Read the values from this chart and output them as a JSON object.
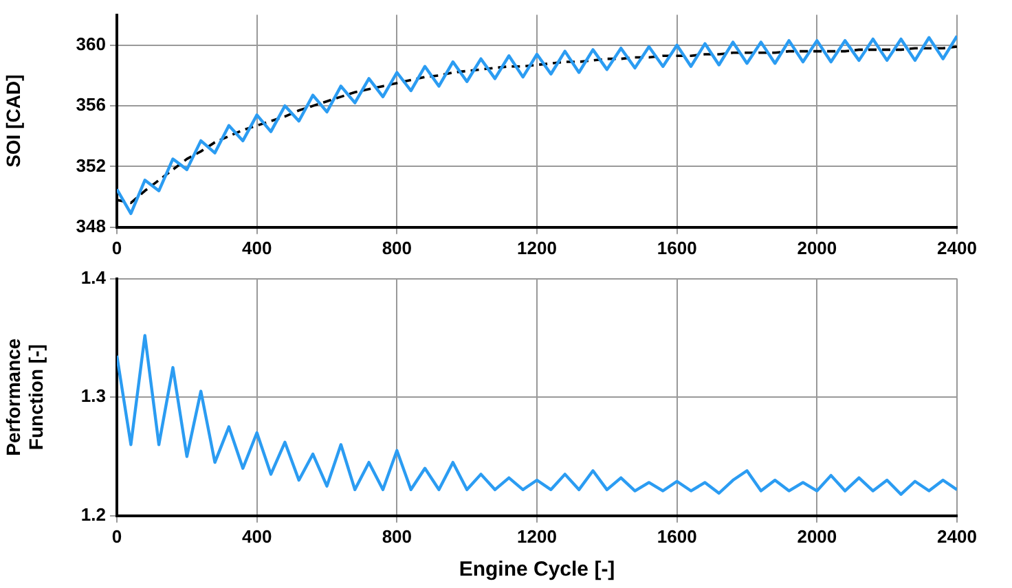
{
  "chart_data": [
    {
      "type": "line",
      "ylabel": "SOI [CAD]",
      "xlim": [
        0,
        2400
      ],
      "xticks": [
        0,
        400,
        800,
        1200,
        1600,
        2000,
        2400
      ],
      "ylim": [
        348,
        362
      ],
      "yticks": [
        348,
        352,
        356,
        360
      ],
      "grid": true,
      "legend": false,
      "marker": "none",
      "x": [
        0,
        40,
        80,
        120,
        160,
        200,
        240,
        280,
        320,
        360,
        400,
        440,
        480,
        520,
        560,
        600,
        640,
        680,
        720,
        760,
        800,
        840,
        880,
        920,
        960,
        1000,
        1040,
        1080,
        1120,
        1160,
        1200,
        1240,
        1280,
        1320,
        1360,
        1400,
        1440,
        1480,
        1520,
        1560,
        1600,
        1640,
        1680,
        1720,
        1760,
        1800,
        1840,
        1880,
        1920,
        1960,
        2000,
        2040,
        2080,
        2120,
        2160,
        2200,
        2240,
        2280,
        2320,
        2360,
        2400
      ],
      "series": [
        {
          "color": "#2b9cf2",
          "line_style": "solid",
          "values": [
            350.5,
            348.9,
            351.1,
            350.4,
            352.5,
            351.8,
            353.7,
            352.9,
            354.7,
            353.7,
            355.4,
            354.3,
            356.0,
            355.0,
            356.7,
            355.6,
            357.3,
            356.2,
            357.8,
            356.6,
            358.2,
            357.0,
            358.6,
            357.3,
            358.9,
            357.6,
            359.1,
            357.8,
            359.3,
            357.9,
            359.4,
            358.1,
            359.6,
            358.2,
            359.7,
            358.4,
            359.8,
            358.5,
            359.9,
            358.6,
            360.0,
            358.6,
            360.1,
            358.7,
            360.2,
            358.8,
            360.2,
            358.8,
            360.3,
            358.9,
            360.3,
            358.9,
            360.3,
            359.0,
            360.4,
            359.0,
            360.4,
            359.0,
            360.5,
            359.1,
            360.6
          ]
        },
        {
          "color": "#000000",
          "line_style": "dashed",
          "values": [
            349.8,
            349.6,
            350.4,
            351.1,
            351.8,
            352.5,
            353.0,
            353.6,
            354.0,
            354.4,
            354.7,
            355.0,
            355.3,
            355.7,
            356.0,
            356.3,
            356.6,
            356.9,
            357.1,
            357.3,
            357.5,
            357.7,
            357.9,
            358.0,
            358.2,
            358.3,
            358.4,
            358.5,
            358.6,
            358.6,
            358.7,
            358.8,
            358.9,
            358.9,
            359.0,
            359.1,
            359.1,
            359.2,
            359.2,
            359.3,
            359.3,
            359.3,
            359.4,
            359.4,
            359.5,
            359.5,
            359.5,
            359.5,
            359.6,
            359.6,
            359.6,
            359.6,
            359.6,
            359.7,
            359.7,
            359.7,
            359.7,
            359.8,
            359.8,
            359.8,
            359.9
          ]
        }
      ]
    },
    {
      "type": "line",
      "xlabel": "Engine Cycle [-]",
      "ylabel": "Performance Function [-]",
      "xlim": [
        0,
        2400
      ],
      "xticks": [
        0,
        400,
        800,
        1200,
        1600,
        2000,
        2400
      ],
      "ylim": [
        1.2,
        1.4
      ],
      "yticks": [
        1.2,
        1.3,
        1.4
      ],
      "grid": true,
      "legend": false,
      "marker": "none",
      "x": [
        0,
        40,
        80,
        120,
        160,
        200,
        240,
        280,
        320,
        360,
        400,
        440,
        480,
        520,
        560,
        600,
        640,
        680,
        720,
        760,
        800,
        840,
        880,
        920,
        960,
        1000,
        1040,
        1080,
        1120,
        1160,
        1200,
        1240,
        1280,
        1320,
        1360,
        1400,
        1440,
        1480,
        1520,
        1560,
        1600,
        1640,
        1680,
        1720,
        1760,
        1800,
        1840,
        1880,
        1920,
        1960,
        2000,
        2040,
        2080,
        2120,
        2160,
        2200,
        2240,
        2280,
        2320,
        2360,
        2400
      ],
      "series": [
        {
          "color": "#2b9cf2",
          "line_style": "solid",
          "values": [
            1.335,
            1.26,
            1.352,
            1.26,
            1.325,
            1.25,
            1.305,
            1.245,
            1.275,
            1.24,
            1.27,
            1.235,
            1.262,
            1.23,
            1.252,
            1.225,
            1.26,
            1.222,
            1.245,
            1.222,
            1.255,
            1.222,
            1.24,
            1.222,
            1.245,
            1.222,
            1.235,
            1.222,
            1.232,
            1.222,
            1.23,
            1.222,
            1.235,
            1.222,
            1.238,
            1.222,
            1.232,
            1.221,
            1.228,
            1.221,
            1.229,
            1.221,
            1.228,
            1.219,
            1.23,
            1.238,
            1.221,
            1.23,
            1.221,
            1.228,
            1.221,
            1.234,
            1.221,
            1.232,
            1.221,
            1.23,
            1.218,
            1.229,
            1.221,
            1.23,
            1.222
          ]
        }
      ]
    }
  ]
}
